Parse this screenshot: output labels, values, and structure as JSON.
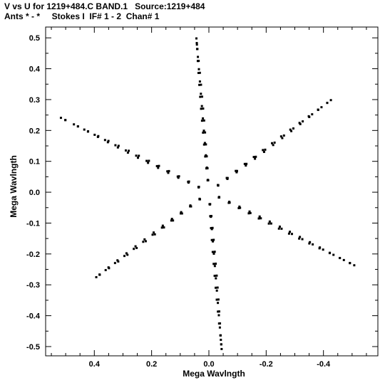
{
  "header": {
    "line1": "V vs U for 1219+484.C BAND.1   Source:1219+484",
    "line2": "Ants * - *     Stokes I  IF# 1 - 2  Chan# 1"
  },
  "chart_data": {
    "type": "scatter",
    "xlabel": "Mega Wavlngth",
    "ylabel": "Mega Wavlngth",
    "xlim": [
      0.57,
      -0.59
    ],
    "ylim": [
      -0.53,
      0.535
    ],
    "x_axis_reversed": true,
    "xticks": [
      0.4,
      0.2,
      0.0,
      -0.2,
      -0.4
    ],
    "xtick_labels": [
      "0.4",
      "0.2",
      "0.0",
      "-0.2",
      "-0.4"
    ],
    "yticks": [
      0.5,
      0.4,
      0.3,
      0.2,
      0.1,
      0.0,
      -0.1,
      -0.2,
      -0.3,
      -0.4,
      -0.5
    ],
    "ytick_labels": [
      "0.5",
      "0.4",
      "0.3",
      "0.2",
      "0.1",
      "0.0",
      "-0.1",
      "-0.2",
      "-0.3",
      "-0.4",
      "-0.5"
    ],
    "grid": false,
    "legend": "none",
    "marker_color": "#000000",
    "uv_tracks": {
      "description_units": "MegaWavelength",
      "tracks": [
        {
          "angle_deg": 85,
          "r": [
            0.04,
            0.08,
            0.12,
            0.16,
            0.2,
            0.24,
            0.28,
            0.32,
            0.36,
            0.4,
            0.44,
            0.48,
            0.5
          ]
        },
        {
          "angle_deg": 145,
          "r": [
            0.04,
            0.08,
            0.12,
            0.16,
            0.2,
            0.24,
            0.28,
            0.32,
            0.36,
            0.4,
            0.44,
            0.48,
            0.52
          ]
        },
        {
          "angle_deg": 205,
          "r": [
            0.04,
            0.08,
            0.12,
            0.16,
            0.2,
            0.24,
            0.28,
            0.32,
            0.36,
            0.4,
            0.44,
            0.48,
            0.52,
            0.56
          ]
        },
        {
          "angle_deg": 265,
          "r": [
            0.04,
            0.08,
            0.12,
            0.16,
            0.2,
            0.24,
            0.28,
            0.32,
            0.36,
            0.4,
            0.44,
            0.48,
            0.51
          ]
        },
        {
          "angle_deg": 325,
          "r": [
            0.04,
            0.08,
            0.12,
            0.16,
            0.2,
            0.24,
            0.28,
            0.32,
            0.36,
            0.4,
            0.44,
            0.48
          ]
        },
        {
          "angle_deg": 25,
          "r": [
            0.04,
            0.08,
            0.12,
            0.16,
            0.2,
            0.24,
            0.28,
            0.32,
            0.36,
            0.4,
            0.44,
            0.48,
            0.52,
            0.57
          ]
        }
      ]
    }
  }
}
